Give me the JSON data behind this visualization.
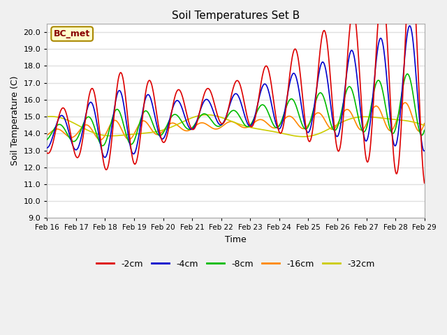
{
  "title": "Soil Temperatures Set B",
  "xlabel": "Time",
  "ylabel": "Soil Temperature (C)",
  "ylim": [
    9.0,
    20.5
  ],
  "yticks": [
    9.0,
    10.0,
    11.0,
    12.0,
    13.0,
    14.0,
    15.0,
    16.0,
    17.0,
    18.0,
    19.0,
    20.0
  ],
  "x_labels": [
    "Feb 16",
    "Feb 17",
    "Feb 18",
    "Feb 19",
    "Feb 20",
    "Feb 21",
    "Feb 22",
    "Feb 23",
    "Feb 24",
    "Feb 25",
    "Feb 26",
    "Feb 27",
    "Feb 28",
    "Feb 29"
  ],
  "annotation_text": "BC_met",
  "annotation_facecolor": "#ffffcc",
  "annotation_edgecolor": "#aa8800",
  "annotation_textcolor": "#880000",
  "colors": [
    "#dd0000",
    "#0000cc",
    "#00bb00",
    "#ff8800",
    "#cccc00"
  ],
  "labels": [
    "-2cm",
    "-4cm",
    "-8cm",
    "-16cm",
    "-32cm"
  ],
  "plot_bg": "#ffffff",
  "fig_bg": "#f0f0f0",
  "grid_color": "#e0e0e0"
}
